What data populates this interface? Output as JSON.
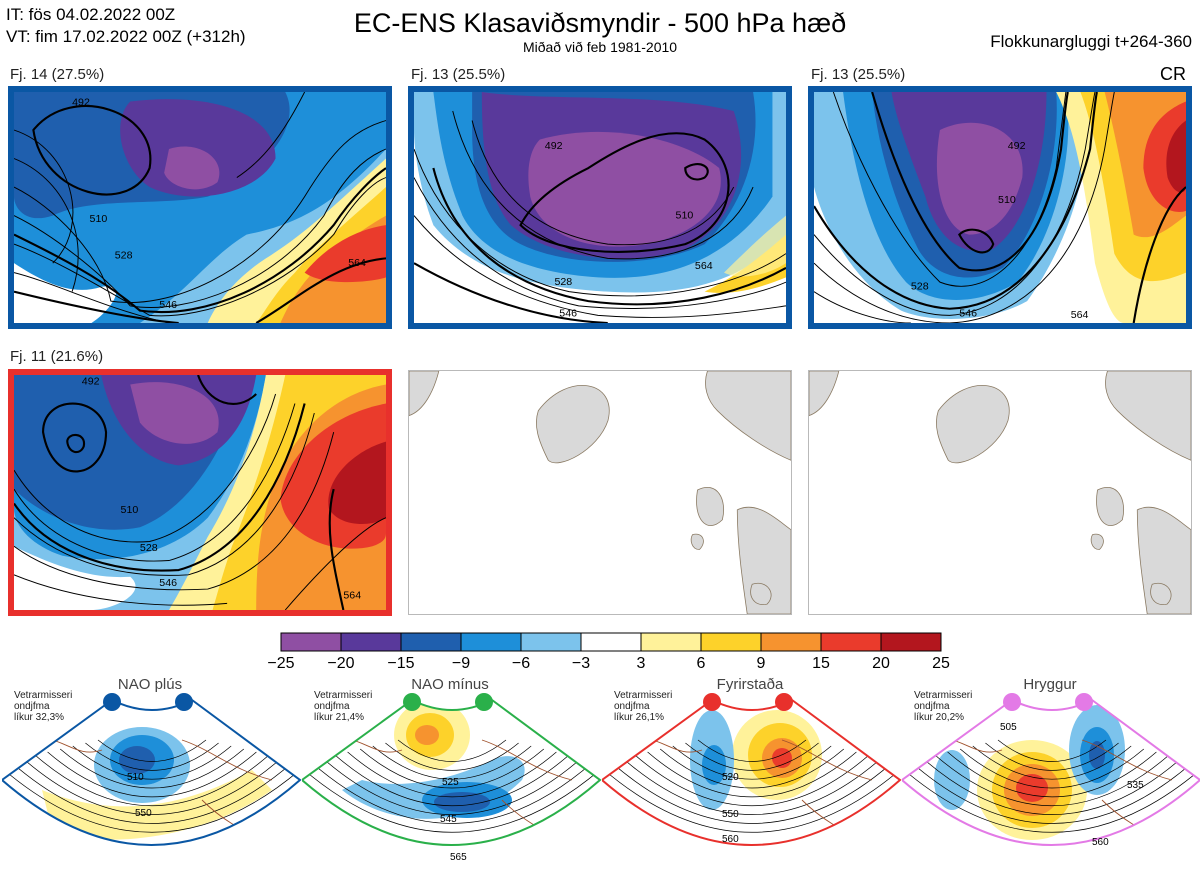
{
  "header": {
    "it_line": "IT: fös 04.02.2022 00Z",
    "vt_line": "VT: fim 17.02.2022 00Z  (+312h)",
    "title": "EC-ENS Klasaviðsmyndir - 500 hPa hæð",
    "subtitle": "Miðað við feb 1981-2010",
    "window_label": "Flokkunargluggi t+264-360",
    "corner_code": "CR"
  },
  "panels": [
    {
      "label": "Fj. 14 (27.5%)",
      "frame": "blue",
      "contours": [
        "492",
        "510",
        "528",
        "546",
        "564"
      ]
    },
    {
      "label": "Fj. 13 (25.5%)",
      "frame": "blue",
      "contours": [
        "492",
        "510",
        "528",
        "546",
        "564"
      ]
    },
    {
      "label": "Fj. 13 (25.5%)",
      "frame": "blue",
      "contours": [
        "492",
        "510",
        "528",
        "546",
        "564"
      ]
    },
    {
      "label": "Fj. 11 (21.6%)",
      "frame": "red",
      "contours": [
        "492",
        "510",
        "528",
        "546",
        "564"
      ]
    }
  ],
  "colors": {
    "frame_blue": "#0a57a4",
    "frame_red": "#e8302c",
    "scale": [
      "#8f4fa3",
      "#59399b",
      "#1f5fae",
      "#1e8fd9",
      "#7cc3ec",
      "#ffffff",
      "#fff29a",
      "#fdd22a",
      "#f6932f",
      "#ea3b2c",
      "#b3161e"
    ]
  },
  "colorbar": {
    "labels": [
      "−25",
      "−20",
      "−15",
      "−9",
      "−6",
      "−3",
      "3",
      "6",
      "9",
      "15",
      "20",
      "25"
    ]
  },
  "regimes": [
    {
      "name": "NAO plús",
      "season": "Vetrarmisseri",
      "type": "ondjfma",
      "prob": "líkur 32,3%",
      "color": "#0a57a4",
      "contours": [
        "510",
        "550"
      ]
    },
    {
      "name": "NAO mínus",
      "season": "Vetrarmisseri",
      "type": "ondjfma",
      "prob": "líkur 21,4%",
      "color": "#2ab04a",
      "contours": [
        "525",
        "545",
        "565"
      ]
    },
    {
      "name": "Fyrirstaða",
      "season": "Vetrarmisseri",
      "type": "ondjfma",
      "prob": "líkur 26,1%",
      "color": "#e8302c",
      "contours": [
        "520",
        "550",
        "560"
      ]
    },
    {
      "name": "Hryggur",
      "season": "Vetrarmisseri",
      "type": "ondjfma",
      "prob": "líkur 20,2%",
      "color": "#e37ae6",
      "contours": [
        "505",
        "535",
        "560"
      ]
    }
  ]
}
